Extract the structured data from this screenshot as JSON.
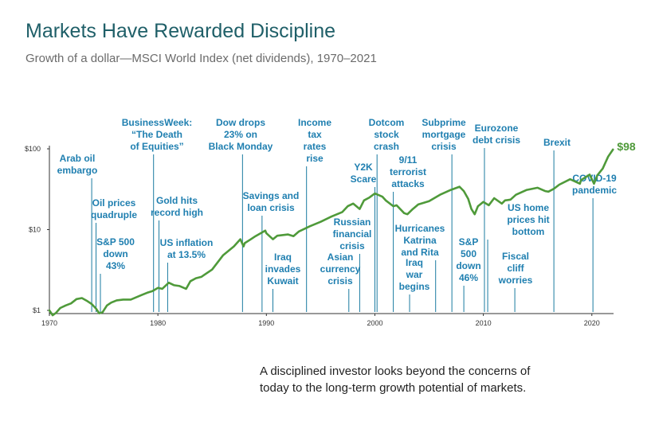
{
  "title": "Markets Have Rewarded Discipline",
  "subtitle": "Growth of a dollar—MSCI World Index (net dividends), 1970–2021",
  "caption": "A disciplined investor looks beyond the concerns of today to the long-term growth potential of markets.",
  "colors": {
    "title": "#1f5f68",
    "line": "#4f9a3a",
    "event": "#1a7ba0",
    "event_text": "#1f7fb0",
    "end_label": "#4f9a3a",
    "axis": "#333333"
  },
  "chart_data": {
    "type": "line",
    "title": "Markets Have Rewarded Discipline",
    "subtitle": "Growth of a dollar—MSCI World Index (net dividends), 1970–2021",
    "xlabel": "",
    "ylabel": "",
    "yscale": "log",
    "xlim": [
      1970,
      2022
    ],
    "ylim": [
      1,
      100
    ],
    "x_ticks": [
      1970,
      1980,
      1990,
      2000,
      2010,
      2020
    ],
    "y_ticks": [
      {
        "value": 1,
        "label": "$1"
      },
      {
        "value": 10,
        "label": "$10"
      },
      {
        "value": 100,
        "label": "$100"
      }
    ],
    "grid": false,
    "end_label": "$98",
    "series": [
      {
        "points": [
          [
            1970,
            1.0
          ],
          [
            1970.3,
            0.87
          ],
          [
            1970.6,
            0.93
          ],
          [
            1971,
            1.07
          ],
          [
            1971.5,
            1.15
          ],
          [
            1972,
            1.22
          ],
          [
            1972.5,
            1.38
          ],
          [
            1973,
            1.42
          ],
          [
            1973.5,
            1.3
          ],
          [
            1973.9,
            1.2
          ],
          [
            1974.3,
            1.05
          ],
          [
            1974.6,
            0.92
          ],
          [
            1974.9,
            0.95
          ],
          [
            1975.3,
            1.15
          ],
          [
            1975.7,
            1.25
          ],
          [
            1976.2,
            1.33
          ],
          [
            1976.8,
            1.36
          ],
          [
            1977.5,
            1.36
          ],
          [
            1978,
            1.45
          ],
          [
            1978.5,
            1.55
          ],
          [
            1979,
            1.65
          ],
          [
            1979.5,
            1.73
          ],
          [
            1980,
            1.9
          ],
          [
            1980.4,
            1.85
          ],
          [
            1981,
            2.2
          ],
          [
            1981.5,
            2.05
          ],
          [
            1982,
            2.0
          ],
          [
            1982.6,
            1.85
          ],
          [
            1983,
            2.3
          ],
          [
            1983.5,
            2.5
          ],
          [
            1984,
            2.6
          ],
          [
            1985,
            3.2
          ],
          [
            1986,
            4.8
          ],
          [
            1987,
            6.2
          ],
          [
            1987.6,
            7.6
          ],
          [
            1987.9,
            6.2
          ],
          [
            1988,
            6.8
          ],
          [
            1988.5,
            7.5
          ],
          [
            1989,
            8.3
          ],
          [
            1989.9,
            9.7
          ],
          [
            1990,
            9.0
          ],
          [
            1990.6,
            7.6
          ],
          [
            1991,
            8.4
          ],
          [
            1992,
            8.7
          ],
          [
            1992.5,
            8.3
          ],
          [
            1993,
            9.5
          ],
          [
            1994,
            11.0
          ],
          [
            1995,
            12.5
          ],
          [
            1996,
            14.5
          ],
          [
            1997,
            16.5
          ],
          [
            1997.5,
            19.5
          ],
          [
            1998,
            21.0
          ],
          [
            1998.6,
            18.0
          ],
          [
            1999,
            23.0
          ],
          [
            1999.5,
            25.0
          ],
          [
            2000,
            28.0
          ],
          [
            2000.7,
            25.5
          ],
          [
            2001,
            23.0
          ],
          [
            2001.7,
            19.5
          ],
          [
            2002,
            20.0
          ],
          [
            2002.7,
            16.0
          ],
          [
            2003,
            15.5
          ],
          [
            2003.5,
            18.0
          ],
          [
            2004,
            20.5
          ],
          [
            2005,
            22.5
          ],
          [
            2006,
            27.0
          ],
          [
            2007,
            31.0
          ],
          [
            2007.8,
            34.0
          ],
          [
            2008.2,
            30.0
          ],
          [
            2008.6,
            24.0
          ],
          [
            2008.9,
            18.0
          ],
          [
            2009.2,
            15.5
          ],
          [
            2009.5,
            19.5
          ],
          [
            2010,
            22.0
          ],
          [
            2010.5,
            20.0
          ],
          [
            2011,
            24.5
          ],
          [
            2011.7,
            21.0
          ],
          [
            2012,
            23.0
          ],
          [
            2012.5,
            23.5
          ],
          [
            2013,
            27.0
          ],
          [
            2014,
            31.0
          ],
          [
            2015,
            33.0
          ],
          [
            2015.7,
            30.0
          ],
          [
            2016,
            29.5
          ],
          [
            2016.5,
            32.0
          ],
          [
            2017,
            36.0
          ],
          [
            2018,
            42.0
          ],
          [
            2018.9,
            37.0
          ],
          [
            2019,
            41.0
          ],
          [
            2019.8,
            48.0
          ],
          [
            2020.2,
            37.0
          ],
          [
            2020.5,
            47.0
          ],
          [
            2021,
            57.0
          ],
          [
            2021.5,
            80.0
          ],
          [
            2021.95,
            98.0
          ]
        ]
      }
    ],
    "annotations": [
      {
        "year": 1973.9,
        "lines": [
          "Arab oil",
          "embargo"
        ]
      },
      {
        "year": 1974.3,
        "lines": [
          "Oil prices",
          "quadruple"
        ]
      },
      {
        "year": 1974.7,
        "lines": [
          "S&P 500",
          "down",
          "43%"
        ]
      },
      {
        "year": 1979.6,
        "lines": [
          "BusinessWeek:",
          "“The Death",
          "of Equities”"
        ]
      },
      {
        "year": 1980.1,
        "lines": [
          "Gold hits",
          "record high"
        ]
      },
      {
        "year": 1980.9,
        "lines": [
          "US inflation",
          "at 13.5%"
        ]
      },
      {
        "year": 1987.8,
        "lines": [
          "Dow drops",
          "23% on",
          "Black Monday"
        ]
      },
      {
        "year": 1989.6,
        "lines": [
          "Savings and",
          "loan crisis"
        ]
      },
      {
        "year": 1990.6,
        "lines": [
          "Iraq",
          "invades",
          "Kuwait"
        ]
      },
      {
        "year": 1993.7,
        "lines": [
          "Income",
          "tax",
          "rates",
          "rise"
        ]
      },
      {
        "year": 1997.6,
        "lines": [
          "Asian",
          "currency",
          "crisis"
        ]
      },
      {
        "year": 1998.6,
        "lines": [
          "Russian",
          "financial",
          "crisis"
        ]
      },
      {
        "year": 2000,
        "lines": [
          "Y2K",
          "Scare"
        ]
      },
      {
        "year": 2000.2,
        "lines": [
          "Dotcom",
          "stock",
          "crash"
        ]
      },
      {
        "year": 2001.7,
        "lines": [
          "9/11",
          "terrorist",
          "attacks"
        ]
      },
      {
        "year": 2003.2,
        "lines": [
          "Iraq",
          "war",
          "begins"
        ]
      },
      {
        "year": 2005.6,
        "lines": [
          "Hurricanes",
          "Katrina",
          "and Rita"
        ]
      },
      {
        "year": 2007.1,
        "lines": [
          "Subprime",
          "mortgage",
          "crisis"
        ]
      },
      {
        "year": 2008.2,
        "lines": [
          "S&P",
          "500",
          "down",
          "46%"
        ]
      },
      {
        "year": 2010.1,
        "lines": [
          "Eurozone",
          "debt crisis"
        ]
      },
      {
        "year": 2010.4,
        "lines": [
          "US home",
          "prices hit",
          "bottom"
        ]
      },
      {
        "year": 2012.9,
        "lines": [
          "Fiscal",
          "cliff",
          "worries"
        ]
      },
      {
        "year": 2016.5,
        "lines": [
          "Brexit"
        ]
      },
      {
        "year": 2020.1,
        "lines": [
          "COVID-19",
          "pandemic"
        ]
      }
    ]
  }
}
